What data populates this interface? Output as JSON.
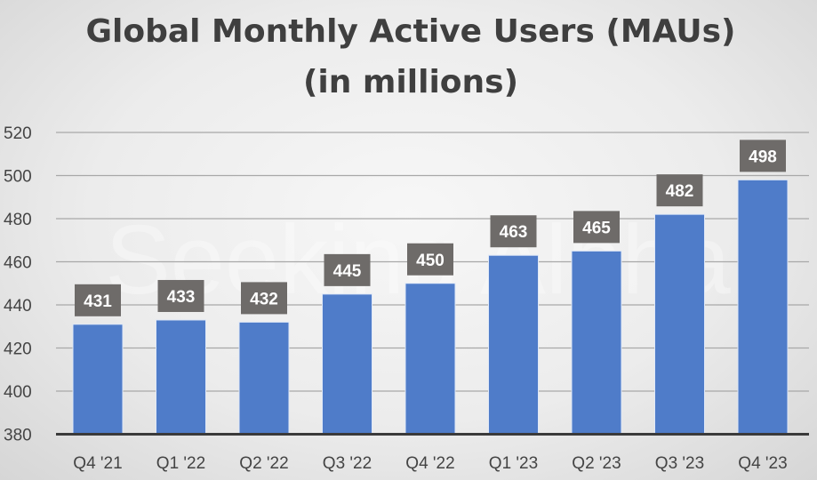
{
  "chart_data": {
    "type": "bar",
    "title": "Global Monthly Active Users (MAUs)",
    "subtitle": "(in millions)",
    "categories": [
      "Q4 '21",
      "Q1 '22",
      "Q2 '22",
      "Q3 '22",
      "Q4 '22",
      "Q1 '23",
      "Q2 '23",
      "Q3 '23",
      "Q4 '23"
    ],
    "values": [
      431,
      433,
      432,
      445,
      450,
      463,
      465,
      482,
      498
    ],
    "ylim": [
      380,
      520
    ],
    "yticks": [
      380,
      400,
      420,
      440,
      460,
      480,
      500,
      520
    ],
    "grid": true,
    "watermark": "Seeking Alpha",
    "colors": {
      "bar": "#4f7cc9",
      "label_box": "#6e6b69",
      "grid": "#a8a8a8",
      "axis": "#3a3a3a"
    }
  }
}
